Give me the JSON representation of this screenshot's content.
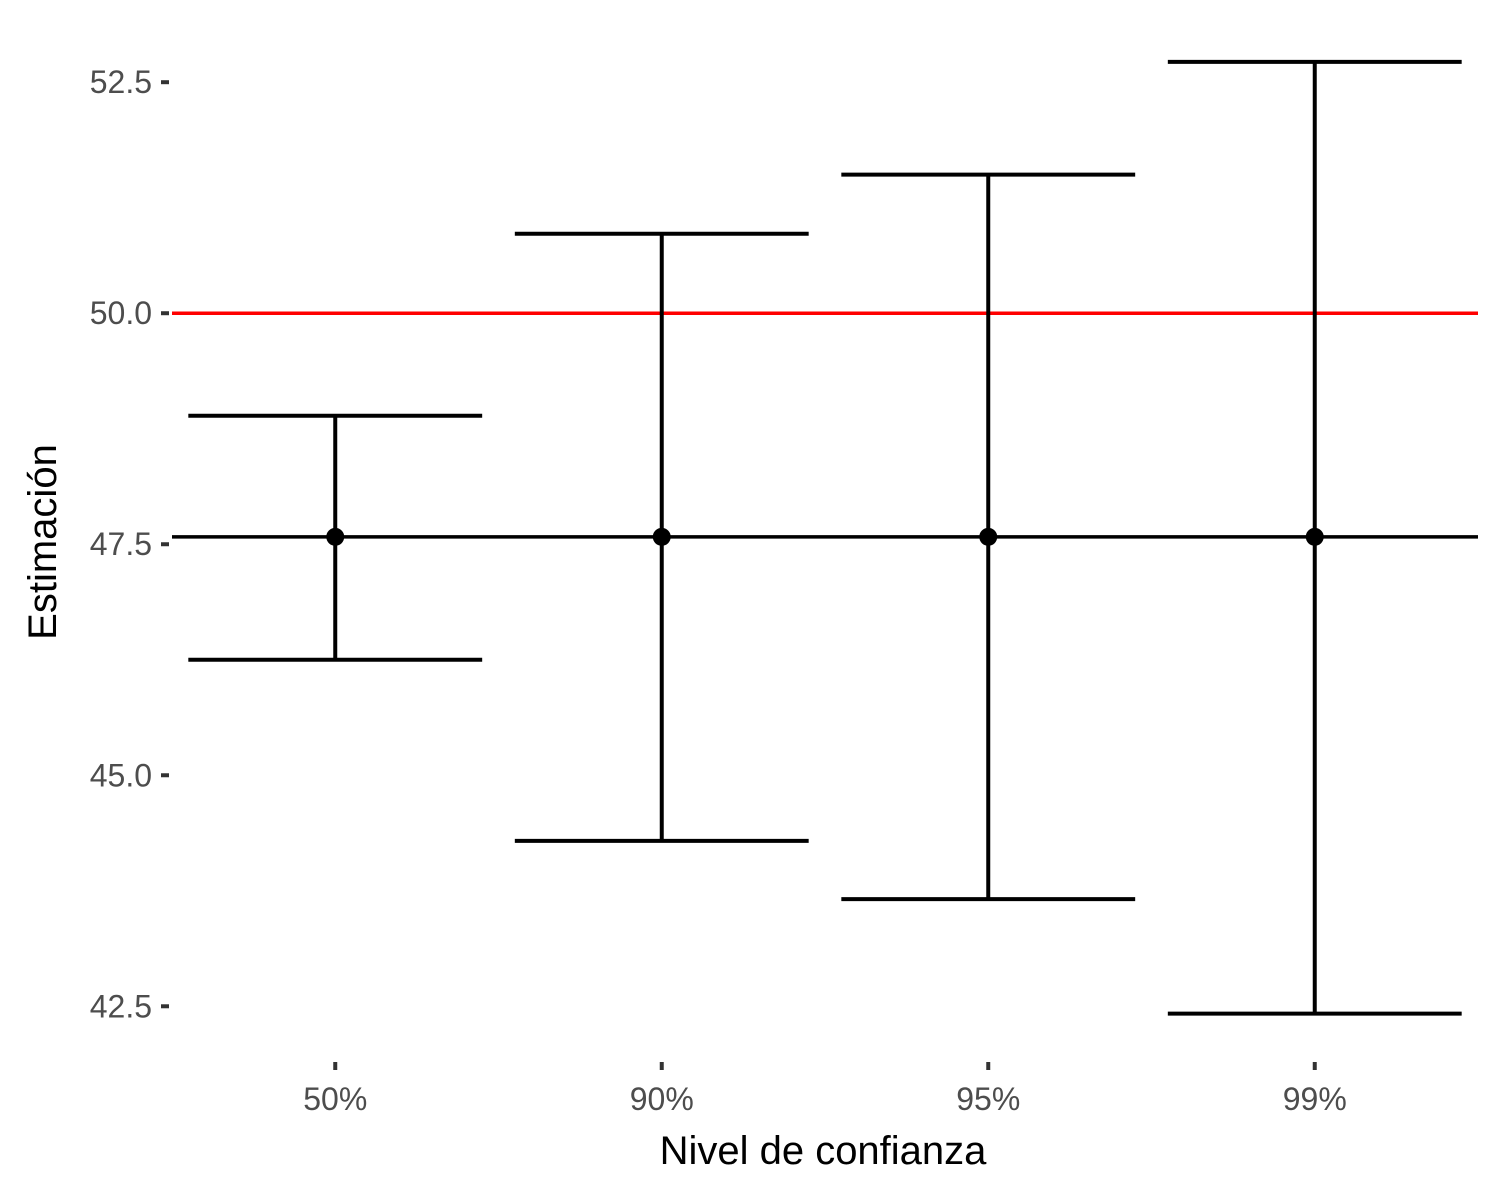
{
  "chart_data": {
    "type": "errorbar",
    "xlabel": "Nivel de confianza",
    "ylabel": "Estimación",
    "categories": [
      "50%",
      "90%",
      "95%",
      "99%"
    ],
    "estimates": [
      47.58,
      47.58,
      47.58,
      47.58
    ],
    "lower": [
      46.25,
      44.29,
      43.66,
      42.42
    ],
    "upper": [
      48.89,
      50.86,
      51.5,
      52.72
    ],
    "ylim": [
      42.2,
      53.0
    ],
    "yticks": [
      42.5,
      45.0,
      47.5,
      50.0,
      52.5
    ],
    "ytick_labels": [
      "42.5",
      "45.0",
      "47.5",
      "50.0",
      "52.5"
    ],
    "reference_lines": [
      {
        "value": 50.0,
        "color": "#ff0000"
      },
      {
        "value": 47.58,
        "color": "#000000"
      }
    ],
    "grid": false,
    "legend": "none"
  }
}
